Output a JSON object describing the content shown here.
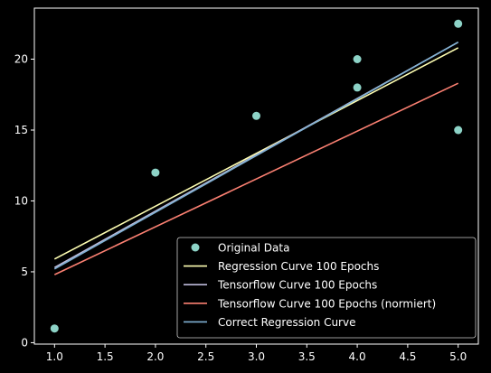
{
  "chart_data": {
    "type": "line",
    "title": "",
    "xlabel": "",
    "ylabel": "",
    "xlim": [
      0.8,
      5.2
    ],
    "ylim": [
      -0.1,
      23.6
    ],
    "xticks": [
      1.0,
      1.5,
      2.0,
      2.5,
      3.0,
      3.5,
      4.0,
      4.5,
      5.0
    ],
    "xtick_labels": [
      "1.0",
      "1.5",
      "2.0",
      "2.5",
      "3.0",
      "3.5",
      "4.0",
      "4.5",
      "5.0"
    ],
    "yticks": [
      0,
      5,
      10,
      15,
      20
    ],
    "ytick_labels": [
      "0",
      "5",
      "10",
      "15",
      "20"
    ],
    "grid": false,
    "legend_position": "bottom-right",
    "background": "#000000",
    "scatter": {
      "name": "Original Data",
      "color": "#8dd3c7",
      "x": [
        1,
        2,
        3,
        4,
        4,
        5,
        5
      ],
      "y": [
        1,
        12,
        16,
        18,
        20,
        22.5,
        15
      ]
    },
    "series": [
      {
        "name": "Regression Curve 100 Epochs",
        "color": "#ffffb3",
        "x": [
          1,
          5
        ],
        "y": [
          5.9,
          20.8
        ]
      },
      {
        "name": "Tensorflow Curve 100 Epochs",
        "color": "#bebada",
        "x": [
          1,
          5
        ],
        "y": [
          5.3,
          21.2
        ]
      },
      {
        "name": "Tensorflow Curve 100 Epochs (normiert)",
        "color": "#fb8072",
        "x": [
          1,
          5
        ],
        "y": [
          4.8,
          18.3
        ]
      },
      {
        "name": "Correct Regression Curve",
        "color": "#80b1d3",
        "x": [
          1,
          5
        ],
        "y": [
          5.2,
          21.2
        ]
      }
    ]
  }
}
